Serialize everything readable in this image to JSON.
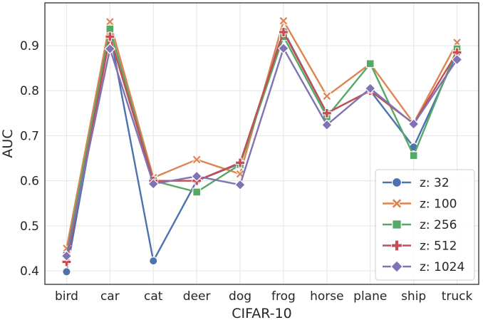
{
  "chart_data": {
    "type": "line",
    "title": "",
    "xlabel": "CIFAR-10",
    "ylabel": "AUC",
    "categories": [
      "bird",
      "car",
      "cat",
      "deer",
      "dog",
      "frog",
      "horse",
      "plane",
      "ship",
      "truck"
    ],
    "ylim": [
      0.37,
      0.995
    ],
    "yticks": [
      "0.4",
      "0.5",
      "0.6",
      "0.7",
      "0.8",
      "0.9"
    ],
    "grid": true,
    "legend_position": "bottom-right",
    "series": [
      {
        "name": "z: 32",
        "color": "#4c72b0",
        "marker": "circle",
        "values": [
          0.398,
          0.929,
          0.422,
          0.6,
          0.638,
          0.933,
          0.75,
          0.8,
          0.675,
          0.884
        ]
      },
      {
        "name": "z: 100",
        "color": "#dd8452",
        "marker": "x",
        "values": [
          0.45,
          0.953,
          0.607,
          0.647,
          0.615,
          0.955,
          0.788,
          0.86,
          0.728,
          0.907
        ]
      },
      {
        "name": "z: 256",
        "color": "#55a868",
        "marker": "square",
        "values": [
          0.435,
          0.937,
          0.6,
          0.575,
          0.636,
          0.92,
          0.742,
          0.86,
          0.656,
          0.893
        ]
      },
      {
        "name": "z: 512",
        "color": "#c44e52",
        "marker": "plus",
        "values": [
          0.42,
          0.92,
          0.6,
          0.6,
          0.64,
          0.93,
          0.75,
          0.8,
          0.727,
          0.885
        ]
      },
      {
        "name": "z: 1024",
        "color": "#8172b3",
        "marker": "diamond",
        "values": [
          0.433,
          0.893,
          0.593,
          0.61,
          0.591,
          0.894,
          0.724,
          0.805,
          0.726,
          0.869
        ]
      }
    ]
  }
}
